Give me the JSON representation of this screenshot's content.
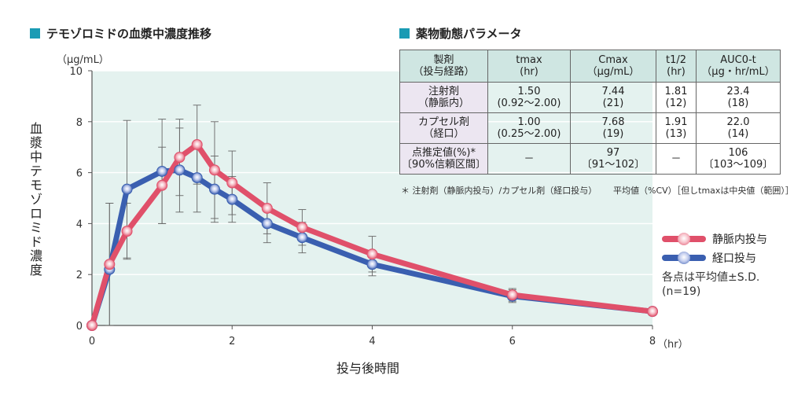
{
  "chart_title": "テモゾロミドの血漿中濃度推移",
  "table_title": "薬物動態パラメータ",
  "colors": {
    "accent": "#1a9bb4",
    "iv": "#e0506a",
    "oral": "#3a5fb0",
    "plot_bg": "#e4f2ef"
  },
  "chart_data": {
    "type": "line",
    "ylabel": "血漿中テモゾロミド濃度",
    "yunit": "（μg/mL）",
    "xlabel": "投与後時間",
    "xunit": "（hr）",
    "xlim": [
      0,
      8
    ],
    "ylim": [
      0,
      10
    ],
    "xticks": [
      0,
      2,
      4,
      6,
      8
    ],
    "yticks": [
      0,
      2,
      4,
      6,
      8,
      10
    ],
    "grid": true,
    "series": [
      {
        "name": "静脈内投与",
        "color": "#e0506a",
        "x": [
          0,
          0.25,
          0.5,
          1.0,
          1.25,
          1.5,
          1.75,
          2.0,
          2.5,
          3.0,
          4.0,
          6.0,
          8.0
        ],
        "y": [
          0,
          2.4,
          3.7,
          5.5,
          6.6,
          7.1,
          6.1,
          5.6,
          4.6,
          3.85,
          2.8,
          1.2,
          0.55
        ],
        "sd": [
          0,
          2.4,
          1.1,
          1.5,
          1.5,
          1.55,
          1.9,
          1.25,
          1.0,
          0.7,
          0.7,
          0.25,
          0.15
        ]
      },
      {
        "name": "経口投与",
        "color": "#3a5fb0",
        "x": [
          0,
          0.25,
          0.5,
          1.0,
          1.25,
          1.5,
          1.75,
          2.0,
          2.5,
          3.0,
          4.0,
          6.0,
          8.0
        ],
        "y": [
          0,
          2.2,
          5.35,
          6.05,
          6.1,
          5.8,
          5.35,
          4.95,
          4.0,
          3.45,
          2.4,
          1.15,
          0.55
        ],
        "sd": [
          0,
          2.6,
          2.7,
          2.05,
          1.65,
          1.35,
          1.3,
          0.9,
          0.75,
          0.6,
          0.45,
          0.25,
          0.15
        ]
      }
    ],
    "legend_position": "right",
    "legend_note": [
      "各点は平均値±S.D.",
      "(n=19)"
    ]
  },
  "table": {
    "headers": [
      [
        "製剤",
        "（投与経路）"
      ],
      [
        "tmax",
        "(hr)"
      ],
      [
        "Cmax",
        "（μg/mL）"
      ],
      [
        "t1/2",
        "(hr)"
      ],
      [
        "AUC0-t",
        "（μg・hr/mL）"
      ]
    ],
    "rows": [
      [
        [
          "注射剤",
          "（静脈内）"
        ],
        [
          "1.50",
          "(0.92〜2.00)"
        ],
        [
          "7.44",
          "(21)"
        ],
        [
          "1.81",
          "(12)"
        ],
        [
          "23.4",
          "(18)"
        ]
      ],
      [
        [
          "カプセル剤",
          "（経口）"
        ],
        [
          "1.00",
          "(0.25〜2.00)"
        ],
        [
          "7.68",
          "(19)"
        ],
        [
          "1.91",
          "(13)"
        ],
        [
          "22.0",
          "(14)"
        ]
      ],
      [
        [
          "点推定値(%)*",
          "〔90%信頼区間〕"
        ],
        [
          "－",
          ""
        ],
        [
          "97",
          "〔91〜102〕"
        ],
        [
          "－",
          ""
        ],
        [
          "106",
          "〔103〜109〕"
        ]
      ]
    ],
    "footnote_left": "＊ 注射剤（静脈内投与）/カプセル剤（経口投与）",
    "footnote_right": "平均値（%CV）［但しtmaxは中央値（範囲）］"
  }
}
